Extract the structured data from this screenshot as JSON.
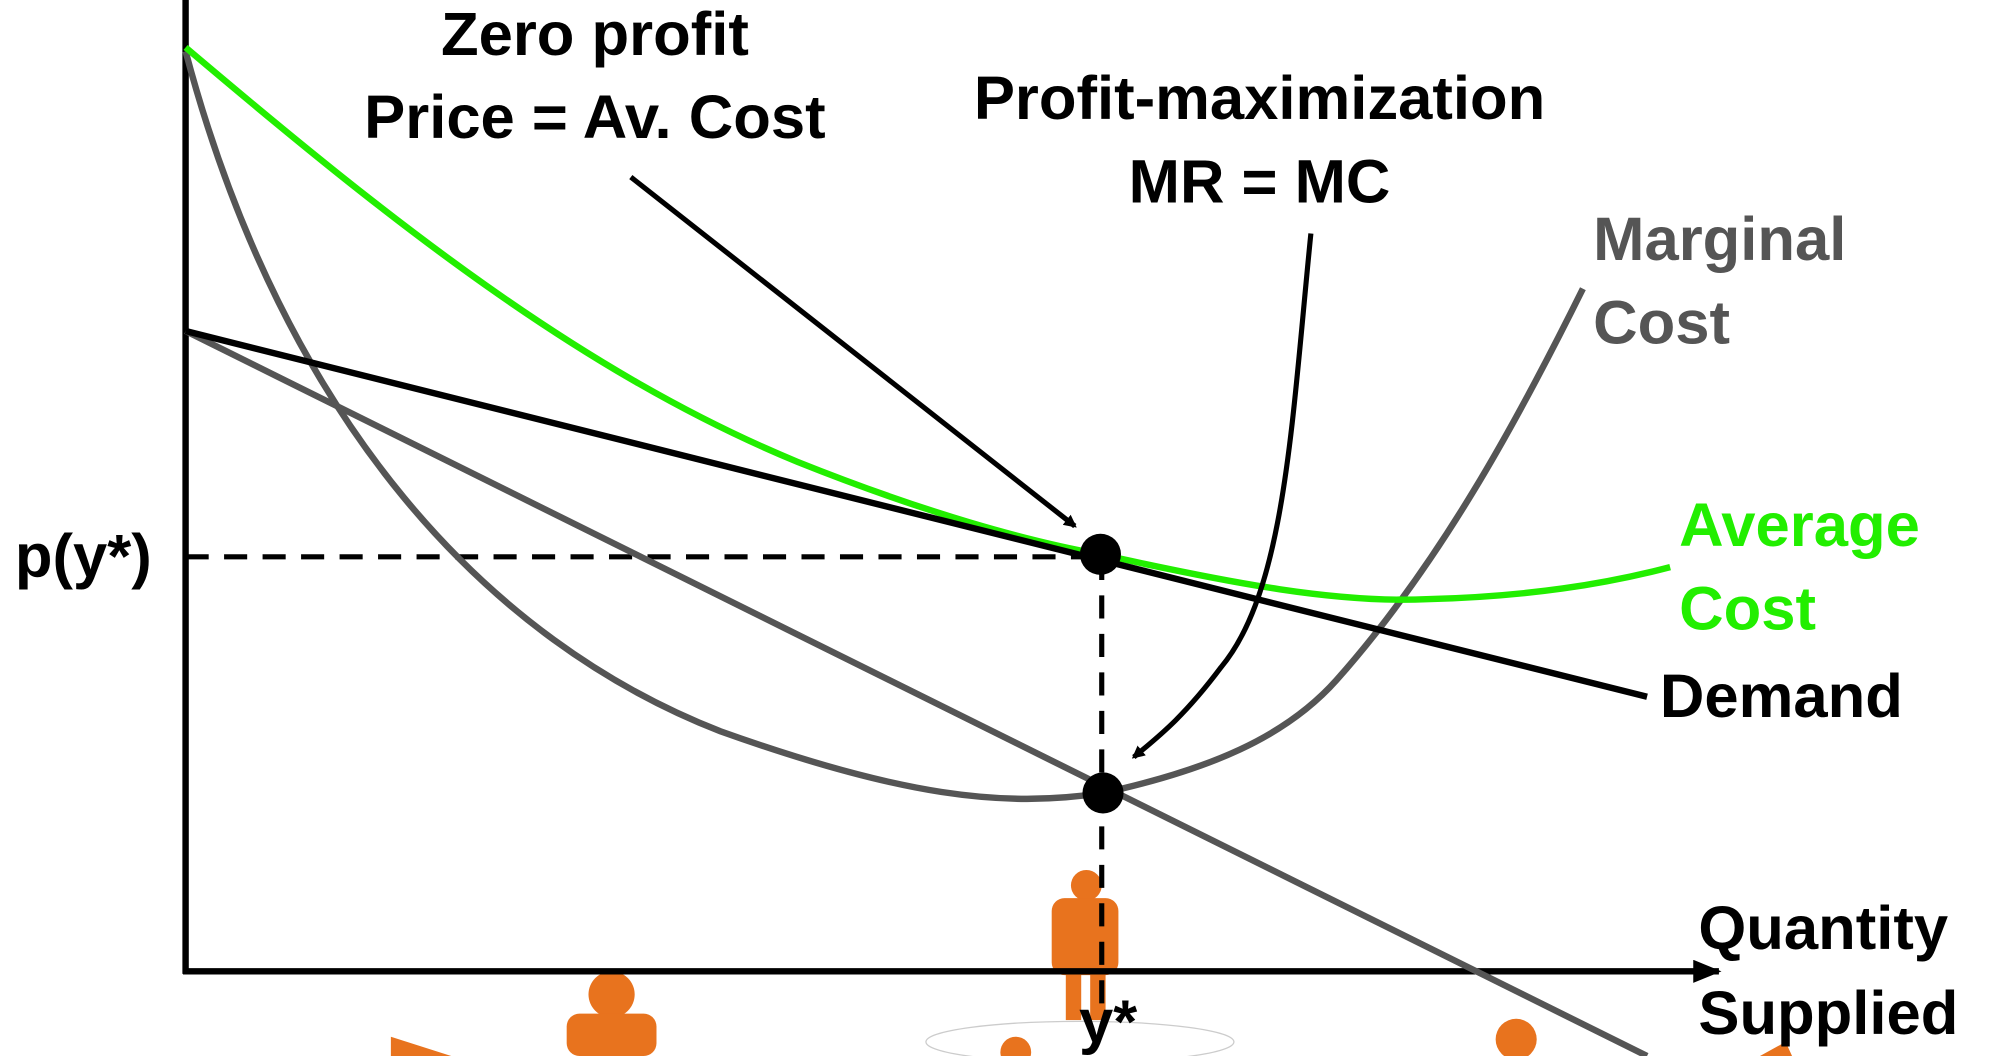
{
  "annotations": {
    "zero_profit": [
      "Zero profit",
      "Price = Av. Cost"
    ],
    "profit_max": [
      "Profit-maximization",
      "MR = MC"
    ]
  },
  "curves": {
    "marginal_cost": [
      "Marginal",
      "Cost"
    ],
    "average_cost": [
      "Average",
      "Cost"
    ],
    "demand": "Demand"
  },
  "axes": {
    "price_label": "p(y*)",
    "quantity_label": "y*",
    "x_title": [
      "Quantity",
      "Supplied"
    ]
  }
}
